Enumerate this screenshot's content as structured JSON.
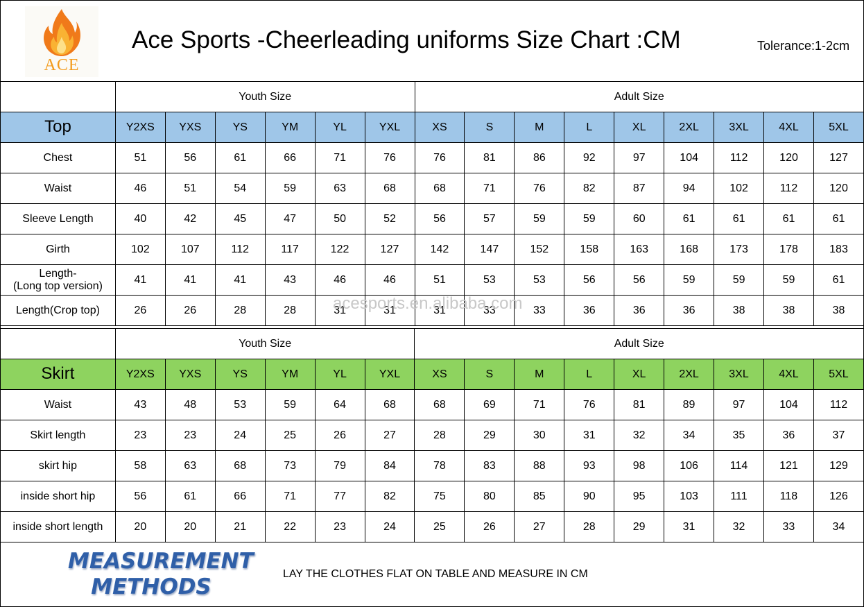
{
  "logo": {
    "text": "ACE"
  },
  "title": "Ace Sports -Cheerleading uniforms Size Chart :CM",
  "tolerance": "Tolerance:1-2cm",
  "youth_label": "Youth Size",
  "adult_label": "Adult Size",
  "watermark": "acesports.en.alibaba.com",
  "top": {
    "name": "Top",
    "sizes": [
      "Y2XS",
      "YXS",
      "YS",
      "YM",
      "YL",
      "YXL",
      "XS",
      "S",
      "M",
      "L",
      "XL",
      "2XL",
      "3XL",
      "4XL",
      "5XL"
    ],
    "rows": [
      {
        "label": "Chest",
        "values": [
          "51",
          "56",
          "61",
          "66",
          "71",
          "76",
          "76",
          "81",
          "86",
          "92",
          "97",
          "104",
          "112",
          "120",
          "127"
        ]
      },
      {
        "label": "Waist",
        "values": [
          "46",
          "51",
          "54",
          "59",
          "63",
          "68",
          "68",
          "71",
          "76",
          "82",
          "87",
          "94",
          "102",
          "112",
          "120"
        ]
      },
      {
        "label": "Sleeve Length",
        "values": [
          "40",
          "42",
          "45",
          "47",
          "50",
          "52",
          "56",
          "57",
          "59",
          "59",
          "60",
          "61",
          "61",
          "61",
          "61"
        ]
      },
      {
        "label": "Girth",
        "values": [
          "102",
          "107",
          "112",
          "117",
          "122",
          "127",
          "142",
          "147",
          "152",
          "158",
          "163",
          "168",
          "173",
          "178",
          "183"
        ]
      },
      {
        "label": "Length-",
        "label2": "(Long top version)",
        "values": [
          "41",
          "41",
          "41",
          "43",
          "46",
          "46",
          "51",
          "53",
          "53",
          "56",
          "56",
          "59",
          "59",
          "59",
          "61"
        ]
      },
      {
        "label": "Length(Crop top)",
        "values": [
          "26",
          "26",
          "28",
          "28",
          "31",
          "31",
          "31",
          "33",
          "33",
          "36",
          "36",
          "36",
          "38",
          "38",
          "38"
        ]
      }
    ]
  },
  "skirt": {
    "name": "Skirt",
    "sizes": [
      "Y2XS",
      "YXS",
      "YS",
      "YM",
      "YL",
      "YXL",
      "XS",
      "S",
      "M",
      "L",
      "XL",
      "2XL",
      "3XL",
      "4XL",
      "5XL"
    ],
    "rows": [
      {
        "label": "Waist",
        "values": [
          "43",
          "48",
          "53",
          "59",
          "64",
          "68",
          "68",
          "69",
          "71",
          "76",
          "81",
          "89",
          "97",
          "104",
          "112"
        ]
      },
      {
        "label": "Skirt length",
        "values": [
          "23",
          "23",
          "24",
          "25",
          "26",
          "27",
          "28",
          "29",
          "30",
          "31",
          "32",
          "34",
          "35",
          "36",
          "37"
        ]
      },
      {
        "label": "skirt hip",
        "values": [
          "58",
          "63",
          "68",
          "73",
          "79",
          "84",
          "78",
          "83",
          "88",
          "93",
          "98",
          "106",
          "114",
          "121",
          "129"
        ]
      },
      {
        "label": "inside short hip",
        "values": [
          "56",
          "61",
          "66",
          "71",
          "77",
          "82",
          "75",
          "80",
          "85",
          "90",
          "95",
          "103",
          "111",
          "118",
          "126"
        ]
      },
      {
        "label": "inside short length",
        "values": [
          "20",
          "20",
          "21",
          "22",
          "23",
          "24",
          "25",
          "26",
          "27",
          "28",
          "29",
          "31",
          "32",
          "33",
          "34"
        ]
      }
    ]
  },
  "footer": {
    "measure_line1": "MEASUREMENT",
    "measure_line2": "METHODS",
    "instruction": "LAY THE CLOTHES FLAT ON TABLE AND MEASURE IN CM"
  },
  "colors": {
    "top_band": "#9fc6e8",
    "skirt_band": "#8ed35f",
    "measure_title": "#2f5fa8",
    "logo_text": "#f39b1c"
  }
}
